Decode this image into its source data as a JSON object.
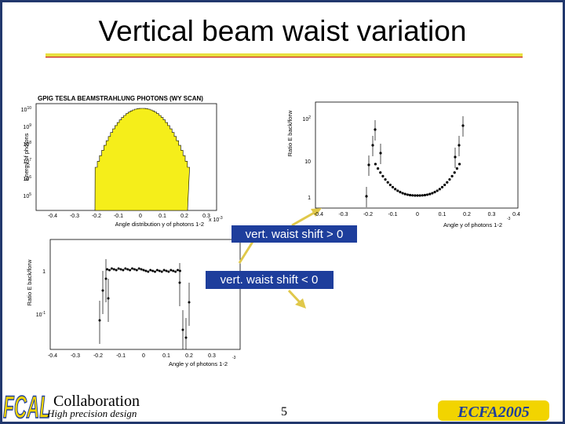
{
  "header": {
    "title": "Vertical beam waist variation"
  },
  "plots": [
    {
      "title": "GPIG TESLA BEAMSTRAHLUNG PHOTONS (WY SCAN)",
      "y_label": "Energy of photons",
      "x_label": "Angle distribution y of photons 1-2",
      "x_scale": "x 10",
      "x_scale_exp": "-3",
      "x_ticks": [
        "-0.4",
        "-0.3",
        "-0.2",
        "-0.1",
        "0",
        "0.1",
        "0.2",
        "0.3"
      ],
      "y_ticks": [
        {
          "base": "10",
          "exp": "10"
        },
        {
          "base": "10",
          "exp": "9"
        },
        {
          "base": "10",
          "exp": "8"
        },
        {
          "base": "10",
          "exp": "7"
        },
        {
          "base": "10",
          "exp": "6"
        },
        {
          "base": "10",
          "exp": "5"
        }
      ]
    },
    {
      "y_label": "Ratio E back/forw",
      "x_label": "Angle y of photons 1-2",
      "x_scale_exp": "-3",
      "x_ticks": [
        "-0.4",
        "-0.3",
        "-0.2",
        "-0.1",
        "0",
        "0.1",
        "0.2",
        "0.3",
        "0.4"
      ],
      "y_ticks": [
        {
          "base": "10",
          "exp": "2"
        },
        {
          "base": "10",
          "exp": ""
        },
        {
          "base": "1",
          "exp": ""
        }
      ]
    },
    {
      "y_label": "Ratio E back/forw",
      "x_label": "Angle y of photons 1-2",
      "x_scale_exp": "-3",
      "x_ticks": [
        "-0.4",
        "-0.3",
        "-0.2",
        "-0.1",
        "0",
        "0.1",
        "0.2",
        "0.3"
      ],
      "y_ticks": [
        {
          "base": "1",
          "exp": ""
        },
        {
          "base": "10",
          "exp": "-1"
        }
      ]
    }
  ],
  "annotations": [
    "vert. waist shift > 0",
    "vert. waist shift < 0"
  ],
  "footer": {
    "logo": "FCAL",
    "collaboration": "Collaboration",
    "tagline": "High precision design",
    "page": "5",
    "event": "ECFA2005"
  }
}
